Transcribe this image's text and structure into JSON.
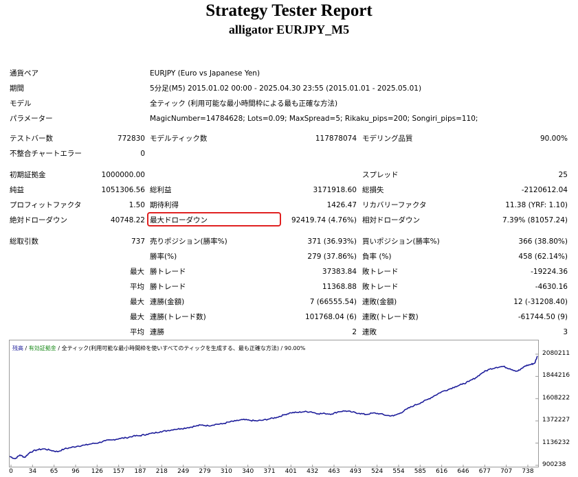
{
  "report": {
    "title": "Strategy Tester Report",
    "subtitle": "alligator EURJPY_M5"
  },
  "info": {
    "currency_label": "通貨ペア",
    "currency_value": "EURJPY (Euro vs Japanese Yen)",
    "period_label": "期間",
    "period_value": "5分足(M5) 2015.01.02 00:00 - 2025.04.30 23:55 (2015.01.01 - 2025.05.01)",
    "model_label": "モデル",
    "model_value": "全ティック (利用可能な最小時間枠による最も正確な方法)",
    "params_label": "パラメーター",
    "params_value": "MagicNumber=14784628; Lots=0.09; MaxSpread=5; Rikaku_pips=200; Songiri_pips=110;"
  },
  "bars": {
    "bars_label": "テストバー数",
    "bars_value": "772830",
    "ticks_label": "モデルティック数",
    "ticks_value": "117878074",
    "quality_label": "モデリング品質",
    "quality_value": "90.00%",
    "errors_label": "不整合チャートエラー",
    "errors_value": "0"
  },
  "stats": {
    "deposit_label": "初期証拠金",
    "deposit_value": "1000000.00",
    "spread_label": "スプレッド",
    "spread_value": "25",
    "net_label": "純益",
    "net_value": "1051306.56",
    "gross_profit_label": "総利益",
    "gross_profit_value": "3171918.60",
    "gross_loss_label": "総損失",
    "gross_loss_value": "-2120612.04",
    "pf_label": "プロフィットファクタ",
    "pf_value": "1.50",
    "expected_label": "期待利得",
    "expected_value": "1426.47",
    "recovery_label": "リカバリーファクタ",
    "recovery_value": "11.38 (YRF: 1.10)",
    "abs_dd_label": "絶対ドローダウン",
    "abs_dd_value": "40748.22",
    "max_dd_label": "最大ドローダウン",
    "max_dd_value": "92419.74 (4.76%)",
    "rel_dd_label": "相対ドローダウン",
    "rel_dd_value": "7.39% (81057.24)"
  },
  "trades": {
    "total_label": "総取引数",
    "total_value": "737",
    "short_label": "売りポジション(勝率%)",
    "short_value": "371 (36.93%)",
    "long_label": "買いポジション(勝率%)",
    "long_value": "366 (38.80%)",
    "win_label": "勝率(%)",
    "win_value": "279 (37.86%)",
    "loss_label": "負率 (%)",
    "loss_value": "458 (62.14%)",
    "max_word": "最大",
    "avg_word": "平均",
    "largest_win_label": "勝トレード",
    "largest_win_value": "37383.84",
    "largest_loss_label": "敗トレード",
    "largest_loss_value": "-19224.36",
    "avg_win_label": "勝トレード",
    "avg_win_value": "11368.88",
    "avg_loss_label": "敗トレード",
    "avg_loss_value": "-4630.16",
    "max_cons_wins_label": "連勝(金額)",
    "max_cons_wins_value": "7 (66555.54)",
    "max_cons_losses_label": "連敗(金額)",
    "max_cons_losses_value": "12 (-31208.40)",
    "max_cons_profit_label": "連勝(トレード数)",
    "max_cons_profit_value": "101768.04 (6)",
    "max_cons_loss_label": "連敗(トレード数)",
    "max_cons_loss_value": "-61744.50 (9)",
    "avg_cons_wins_label": "連勝",
    "avg_cons_wins_value": "2",
    "avg_cons_losses_label": "連敗",
    "avg_cons_losses_value": "3"
  },
  "highlight_color": "#e02020",
  "chart_data": {
    "type": "line",
    "legend": {
      "balance": "残高",
      "margin": "有効証拠金",
      "model": "全ティック(利用可能な最小時間枠を使いすべてのティックを生成する、最も正確な方法)",
      "quality": "90.00%"
    },
    "x_ticks": [
      "0",
      "34",
      "65",
      "96",
      "126",
      "157",
      "187",
      "218",
      "249",
      "279",
      "310",
      "340",
      "371",
      "401",
      "432",
      "463",
      "493",
      "524",
      "554",
      "585",
      "616",
      "646",
      "677",
      "707",
      "738"
    ],
    "y_ticks": [
      "2080211",
      "1844216",
      "1608222",
      "1372227",
      "1136232",
      "900238"
    ],
    "ylim": [
      900238,
      2080211
    ],
    "xlim": [
      0,
      771
    ],
    "line_color": "#1c1c9a",
    "series": [
      {
        "x": [
          0,
          8,
          15,
          22,
          30,
          40,
          50,
          60,
          70,
          80,
          90,
          100,
          110,
          120,
          130,
          140,
          150,
          160,
          170,
          180,
          190,
          200,
          210,
          220,
          230,
          240,
          250,
          260,
          270,
          280,
          290,
          300,
          310,
          320,
          330,
          340,
          350,
          360,
          370,
          380,
          390,
          400,
          410,
          420,
          430,
          440,
          450,
          460,
          470,
          480,
          490,
          500,
          510,
          520,
          530,
          540,
          550,
          560,
          570,
          580,
          590,
          600,
          610,
          620,
          630,
          640,
          650,
          660,
          670,
          680,
          690,
          700,
          710,
          720,
          730,
          740,
          745,
          752,
          760,
          766,
          770
        ],
        "y": [
          995000,
          970000,
          1010000,
          985000,
          1040000,
          1065000,
          1075000,
          1060000,
          1045000,
          1075000,
          1090000,
          1105000,
          1115000,
          1130000,
          1140000,
          1162000,
          1170000,
          1185000,
          1192000,
          1210000,
          1215000,
          1230000,
          1242000,
          1258000,
          1268000,
          1282000,
          1290000,
          1300000,
          1315000,
          1328000,
          1320000,
          1335000,
          1340000,
          1360000,
          1372000,
          1385000,
          1378000,
          1372000,
          1380000,
          1395000,
          1410000,
          1435000,
          1458000,
          1462000,
          1470000,
          1468000,
          1448000,
          1450000,
          1445000,
          1470000,
          1478000,
          1465000,
          1452000,
          1440000,
          1455000,
          1448000,
          1430000,
          1425000,
          1455000,
          1500000,
          1535000,
          1565000,
          1600000,
          1640000,
          1680000,
          1705000,
          1735000,
          1760000,
          1790000,
          1830000,
          1885000,
          1920000,
          1940000,
          1950000,
          1925000,
          1900000,
          1915000,
          1955000,
          1970000,
          1985000,
          2060000
        ]
      }
    ]
  }
}
